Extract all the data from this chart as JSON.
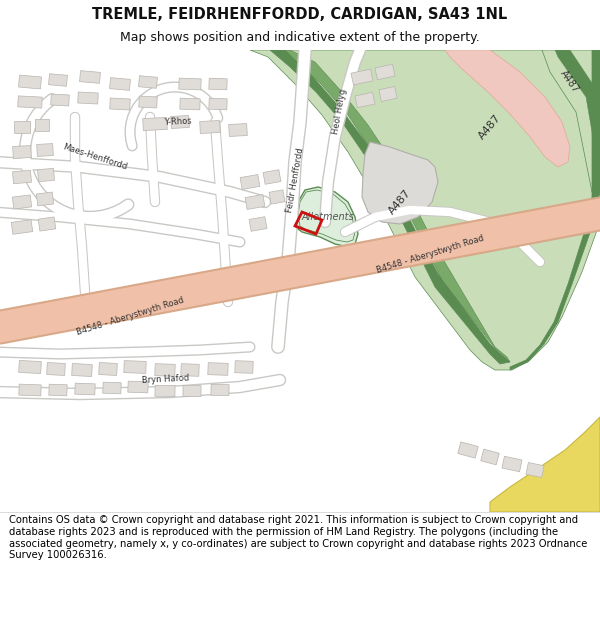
{
  "title": "TREMLE, FEIDRHENFFORDD, CARDIGAN, SA43 1NL",
  "subtitle": "Map shows position and indicative extent of the property.",
  "footer": "Contains OS data © Crown copyright and database right 2021. This information is subject to Crown copyright and database rights 2023 and is reproduced with the permission of HM Land Registry. The polygons (including the associated geometry, namely x, y co-ordinates) are subject to Crown copyright and database rights 2023 Ordnance Survey 100026316.",
  "map_bg": "#f5f3ef",
  "road_salmon": "#f0c0a8",
  "road_salmon_border": "#d8a888",
  "green_dark": "#5a8c52",
  "green_medium": "#7aaa6a",
  "green_light": "#c8ddb8",
  "green_pale": "#ddeedd",
  "building_color": "#e0dcd8",
  "building_border": "#b8b4b0",
  "road_white": "#ffffff",
  "road_gray": "#c8c8c4",
  "property_red": "#cc1111",
  "yellow_area": "#e8d860",
  "pink_junction": "#f0c8c0",
  "text_dark": "#333333",
  "footer_color": "#000000",
  "title_fontsize": 10.5,
  "subtitle_fontsize": 9,
  "footer_fontsize": 7.2
}
